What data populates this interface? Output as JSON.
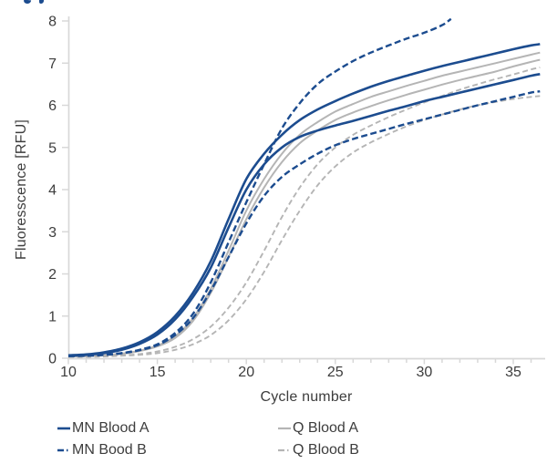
{
  "page": {
    "background": "#ffffff"
  },
  "chart_data": {
    "type": "line",
    "title": "",
    "xlabel": "Cycle number",
    "ylabel": "Fluoresscence [RFU]",
    "xlim": [
      10,
      36.7
    ],
    "ylim": [
      0,
      8
    ],
    "xticks": [
      10,
      15,
      20,
      25,
      30,
      35
    ],
    "x_minor_step": 1,
    "yticks": [
      0,
      1,
      2,
      3,
      4,
      5,
      6,
      7,
      8
    ],
    "grid": false,
    "legend_position": "bottom-two-columns",
    "colors": {
      "mn_blue": "#1c4c8f",
      "q_gray": "#b5b5b5",
      "axis_line": "#d8d8d8",
      "tick_text": "#3d3d3d"
    },
    "series": [
      {
        "name": "Q Blood B",
        "replicate": "2",
        "color": "#b5b5b5",
        "style": "dashed",
        "width": 1.9,
        "points": [
          [
            10,
            0.03
          ],
          [
            11,
            0.03
          ],
          [
            12,
            0.04
          ],
          [
            13,
            0.06
          ],
          [
            14,
            0.08
          ],
          [
            15,
            0.12
          ],
          [
            16,
            0.2
          ],
          [
            17,
            0.33
          ],
          [
            18,
            0.55
          ],
          [
            19,
            0.9
          ],
          [
            20,
            1.4
          ],
          [
            21,
            2.05
          ],
          [
            22,
            2.8
          ],
          [
            23,
            3.5
          ],
          [
            24,
            4.1
          ],
          [
            25,
            4.55
          ],
          [
            26,
            4.88
          ],
          [
            27,
            5.12
          ],
          [
            28,
            5.32
          ],
          [
            29,
            5.5
          ],
          [
            30,
            5.65
          ],
          [
            31,
            5.78
          ],
          [
            32,
            5.9
          ],
          [
            33,
            6.0
          ],
          [
            34,
            6.08
          ],
          [
            35,
            6.15
          ],
          [
            36,
            6.2
          ],
          [
            36.5,
            6.22
          ]
        ]
      },
      {
        "name": "Q Blood B",
        "replicate": "1",
        "color": "#b5b5b5",
        "style": "dashed",
        "width": 1.9,
        "points": [
          [
            10,
            0.03
          ],
          [
            11,
            0.04
          ],
          [
            12,
            0.05
          ],
          [
            13,
            0.07
          ],
          [
            14,
            0.1
          ],
          [
            15,
            0.16
          ],
          [
            16,
            0.27
          ],
          [
            17,
            0.45
          ],
          [
            18,
            0.75
          ],
          [
            19,
            1.2
          ],
          [
            20,
            1.8
          ],
          [
            21,
            2.55
          ],
          [
            22,
            3.35
          ],
          [
            23,
            4.05
          ],
          [
            24,
            4.6
          ],
          [
            25,
            5.0
          ],
          [
            26,
            5.3
          ],
          [
            27,
            5.52
          ],
          [
            28,
            5.72
          ],
          [
            29,
            5.9
          ],
          [
            30,
            6.07
          ],
          [
            31,
            6.22
          ],
          [
            32,
            6.37
          ],
          [
            33,
            6.5
          ],
          [
            34,
            6.62
          ],
          [
            35,
            6.73
          ],
          [
            36,
            6.85
          ],
          [
            36.5,
            6.9
          ]
        ]
      },
      {
        "name": "Q Blood A",
        "replicate": "2",
        "color": "#b5b5b5",
        "style": "solid",
        "width": 2.0,
        "points": [
          [
            10,
            0.04
          ],
          [
            11,
            0.05
          ],
          [
            12,
            0.07
          ],
          [
            13,
            0.1
          ],
          [
            14,
            0.17
          ],
          [
            15,
            0.28
          ],
          [
            16,
            0.48
          ],
          [
            17,
            0.88
          ],
          [
            18,
            1.55
          ],
          [
            19,
            2.4
          ],
          [
            20,
            3.3
          ],
          [
            21,
            4.05
          ],
          [
            22,
            4.65
          ],
          [
            23,
            5.1
          ],
          [
            24,
            5.4
          ],
          [
            25,
            5.65
          ],
          [
            26,
            5.83
          ],
          [
            27,
            5.98
          ],
          [
            28,
            6.12
          ],
          [
            29,
            6.25
          ],
          [
            30,
            6.37
          ],
          [
            31,
            6.49
          ],
          [
            32,
            6.6
          ],
          [
            33,
            6.7
          ],
          [
            34,
            6.8
          ],
          [
            35,
            6.92
          ],
          [
            36,
            7.03
          ],
          [
            36.5,
            7.08
          ]
        ]
      },
      {
        "name": "Q Blood A",
        "replicate": "1",
        "color": "#b5b5b5",
        "style": "solid",
        "width": 2.0,
        "points": [
          [
            10,
            0.04
          ],
          [
            11,
            0.05
          ],
          [
            12,
            0.07
          ],
          [
            13,
            0.11
          ],
          [
            14,
            0.18
          ],
          [
            15,
            0.3
          ],
          [
            16,
            0.52
          ],
          [
            17,
            0.95
          ],
          [
            18,
            1.65
          ],
          [
            19,
            2.55
          ],
          [
            20,
            3.5
          ],
          [
            21,
            4.25
          ],
          [
            22,
            4.85
          ],
          [
            23,
            5.3
          ],
          [
            24,
            5.6
          ],
          [
            25,
            5.85
          ],
          [
            26,
            6.03
          ],
          [
            27,
            6.2
          ],
          [
            28,
            6.33
          ],
          [
            29,
            6.46
          ],
          [
            30,
            6.58
          ],
          [
            31,
            6.7
          ],
          [
            32,
            6.8
          ],
          [
            33,
            6.9
          ],
          [
            34,
            7.0
          ],
          [
            35,
            7.1
          ],
          [
            36,
            7.2
          ],
          [
            36.5,
            7.25
          ]
        ]
      },
      {
        "name": "MN Bood B",
        "replicate": "2",
        "color": "#1c4c8f",
        "style": "dashed",
        "width": 2.4,
        "points": [
          [
            10,
            0.05
          ],
          [
            11,
            0.06
          ],
          [
            12,
            0.08
          ],
          [
            13,
            0.12
          ],
          [
            14,
            0.19
          ],
          [
            15,
            0.31
          ],
          [
            16,
            0.55
          ],
          [
            17,
            0.95
          ],
          [
            18,
            1.6
          ],
          [
            19,
            2.4
          ],
          [
            20,
            3.2
          ],
          [
            21,
            3.85
          ],
          [
            22,
            4.3
          ],
          [
            23,
            4.6
          ],
          [
            24,
            4.85
          ],
          [
            25,
            5.05
          ],
          [
            26,
            5.2
          ],
          [
            27,
            5.32
          ],
          [
            28,
            5.44
          ],
          [
            29,
            5.56
          ],
          [
            30,
            5.67
          ],
          [
            31,
            5.78
          ],
          [
            32,
            5.89
          ],
          [
            33,
            6.0
          ],
          [
            34,
            6.1
          ],
          [
            35,
            6.2
          ],
          [
            36,
            6.3
          ],
          [
            36.5,
            6.33
          ]
        ]
      },
      {
        "name": "MN Blood A",
        "replicate": "2",
        "color": "#1c4c8f",
        "style": "solid",
        "width": 2.6,
        "points": [
          [
            10,
            0.06
          ],
          [
            11,
            0.08
          ],
          [
            12,
            0.12
          ],
          [
            13,
            0.2
          ],
          [
            14,
            0.34
          ],
          [
            15,
            0.56
          ],
          [
            16,
            0.92
          ],
          [
            17,
            1.45
          ],
          [
            18,
            2.15
          ],
          [
            19,
            3.1
          ],
          [
            20,
            4.0
          ],
          [
            21,
            4.6
          ],
          [
            22,
            5.0
          ],
          [
            23,
            5.25
          ],
          [
            24,
            5.4
          ],
          [
            25,
            5.52
          ],
          [
            26,
            5.63
          ],
          [
            27,
            5.75
          ],
          [
            28,
            5.87
          ],
          [
            29,
            5.98
          ],
          [
            30,
            6.1
          ],
          [
            31,
            6.2
          ],
          [
            32,
            6.3
          ],
          [
            33,
            6.4
          ],
          [
            34,
            6.5
          ],
          [
            35,
            6.6
          ],
          [
            36,
            6.7
          ],
          [
            36.5,
            6.74
          ]
        ]
      },
      {
        "name": "MN Blood A",
        "replicate": "1",
        "color": "#1c4c8f",
        "style": "solid",
        "width": 2.6,
        "points": [
          [
            10,
            0.07
          ],
          [
            11,
            0.09
          ],
          [
            12,
            0.14
          ],
          [
            13,
            0.23
          ],
          [
            14,
            0.38
          ],
          [
            15,
            0.62
          ],
          [
            16,
            1.0
          ],
          [
            17,
            1.55
          ],
          [
            18,
            2.3
          ],
          [
            19,
            3.3
          ],
          [
            20,
            4.25
          ],
          [
            21,
            4.85
          ],
          [
            22,
            5.3
          ],
          [
            23,
            5.65
          ],
          [
            24,
            5.9
          ],
          [
            25,
            6.1
          ],
          [
            26,
            6.28
          ],
          [
            27,
            6.44
          ],
          [
            28,
            6.58
          ],
          [
            29,
            6.7
          ],
          [
            30,
            6.82
          ],
          [
            31,
            6.93
          ],
          [
            32,
            7.03
          ],
          [
            33,
            7.13
          ],
          [
            34,
            7.23
          ],
          [
            35,
            7.33
          ],
          [
            36,
            7.42
          ],
          [
            36.5,
            7.45
          ]
        ]
      },
      {
        "name": "MN Bood B",
        "replicate": "1",
        "color": "#1c4c8f",
        "style": "dashed",
        "width": 2.4,
        "points": [
          [
            10,
            0.05
          ],
          [
            11,
            0.06
          ],
          [
            12,
            0.08
          ],
          [
            13,
            0.12
          ],
          [
            14,
            0.2
          ],
          [
            15,
            0.33
          ],
          [
            16,
            0.6
          ],
          [
            17,
            1.05
          ],
          [
            18,
            1.8
          ],
          [
            19,
            2.75
          ],
          [
            20,
            3.7
          ],
          [
            21,
            4.6
          ],
          [
            22,
            5.45
          ],
          [
            23,
            6.05
          ],
          [
            24,
            6.5
          ],
          [
            25,
            6.8
          ],
          [
            26,
            7.05
          ],
          [
            27,
            7.25
          ],
          [
            28,
            7.42
          ],
          [
            29,
            7.58
          ],
          [
            30,
            7.72
          ],
          [
            31,
            7.9
          ],
          [
            31.5,
            8.05
          ]
        ]
      }
    ],
    "legend": [
      {
        "label": "MN Blood A",
        "color": "#1c4c8f",
        "style": "solid"
      },
      {
        "label": "MN Bood B",
        "color": "#1c4c8f",
        "style": "dashdot"
      },
      {
        "label": "Q Blood A",
        "color": "#b5b5b5",
        "style": "solid"
      },
      {
        "label": "Q Blood B",
        "color": "#b5b5b5",
        "style": "dashdot"
      }
    ]
  }
}
